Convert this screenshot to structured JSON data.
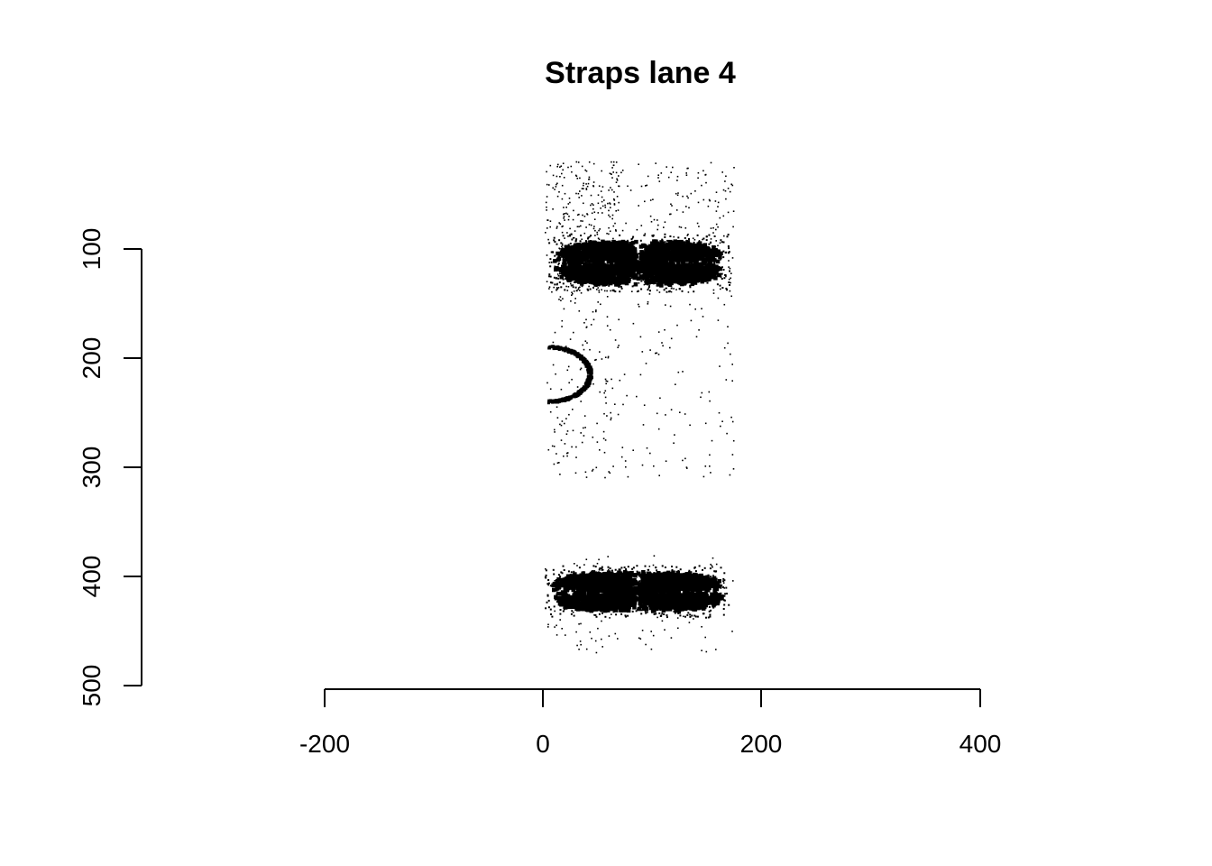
{
  "chart_data": {
    "type": "scatter",
    "title": "Straps lane 4",
    "xlabel": "",
    "ylabel": "",
    "x_ticks": [
      "-200",
      "0",
      "200",
      "400"
    ],
    "y_ticks": [
      "100",
      "200",
      "300",
      "400",
      "500"
    ],
    "xlim": [
      -200,
      400
    ],
    "ylim": [
      100,
      500
    ],
    "y_reversed": true,
    "grid": false,
    "point_color": "#000000",
    "features": [
      {
        "name": "band",
        "center_x": 88,
        "center_y": 113,
        "half_width_x": 72,
        "half_height_y": 19
      },
      {
        "name": "band",
        "center_x": 86,
        "center_y": 414,
        "half_width_x": 73,
        "half_height_y": 17
      },
      {
        "name": "arc",
        "center_x": 5,
        "center_y": 215,
        "radius_x": 38,
        "radius_y": 25
      }
    ],
    "noise_x_range": [
      2,
      175
    ],
    "noise_y_range": [
      20,
      470
    ]
  }
}
